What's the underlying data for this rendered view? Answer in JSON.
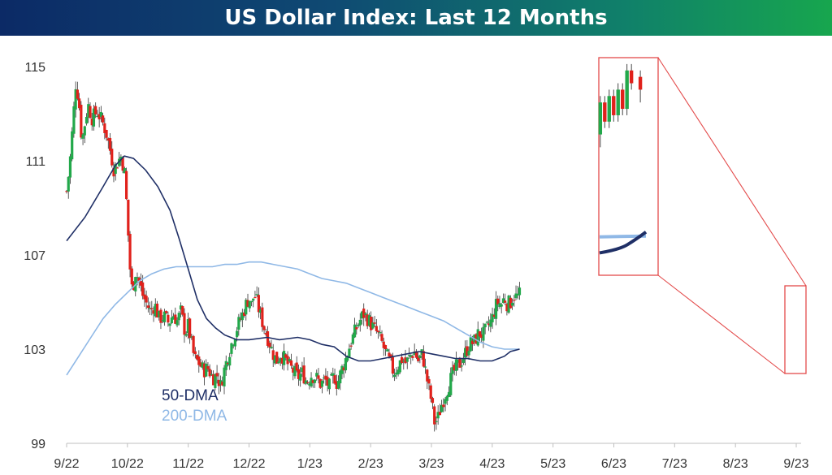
{
  "chart_data": {
    "type": "candlestick",
    "title": "US Dollar Index: Last 12 Months",
    "yticks": [
      99,
      103,
      107,
      111,
      115
    ],
    "ylim": [
      99,
      115.5
    ],
    "xticks": [
      "9/22",
      "10/22",
      "11/22",
      "12/22",
      "1/23",
      "2/23",
      "3/23",
      "4/23",
      "5/23",
      "6/23",
      "7/23",
      "8/23",
      "9/23"
    ],
    "close_path": [
      [
        0,
        109.7
      ],
      [
        0.05,
        110.8
      ],
      [
        0.1,
        112.5
      ],
      [
        0.15,
        114.3
      ],
      [
        0.2,
        113.6
      ],
      [
        0.25,
        111.8
      ],
      [
        0.3,
        112.6
      ],
      [
        0.35,
        113.4
      ],
      [
        0.42,
        112.8
      ],
      [
        0.5,
        113.1
      ],
      [
        0.58,
        112.7
      ],
      [
        0.65,
        112.2
      ],
      [
        0.72,
        111.4
      ],
      [
        0.78,
        110.6
      ],
      [
        0.85,
        111.0
      ],
      [
        0.9,
        111.2
      ],
      [
        0.96,
        110.4
      ],
      [
        1.0,
        108.5
      ],
      [
        1.04,
        106.5
      ],
      [
        1.08,
        105.4
      ],
      [
        1.13,
        106.3
      ],
      [
        1.18,
        106.0
      ],
      [
        1.25,
        105.3
      ],
      [
        1.32,
        104.9
      ],
      [
        1.38,
        104.6
      ],
      [
        1.45,
        104.9
      ],
      [
        1.52,
        104.3
      ],
      [
        1.6,
        104.4
      ],
      [
        1.68,
        104.1
      ],
      [
        1.75,
        104.5
      ],
      [
        1.82,
        104.2
      ],
      [
        1.88,
        104.6
      ],
      [
        1.95,
        103.7
      ],
      [
        2.0,
        104.0
      ],
      [
        2.05,
        103.3
      ],
      [
        2.1,
        102.6
      ],
      [
        2.18,
        102.4
      ],
      [
        2.25,
        102.1
      ],
      [
        2.32,
        102.2
      ],
      [
        2.4,
        101.8
      ],
      [
        2.48,
        101.9
      ],
      [
        2.53,
        101.4
      ],
      [
        2.58,
        102.0
      ],
      [
        2.65,
        102.7
      ],
      [
        2.72,
        103.3
      ],
      [
        2.8,
        103.9
      ],
      [
        2.88,
        104.4
      ],
      [
        2.95,
        104.9
      ],
      [
        3.0,
        105.2
      ],
      [
        3.05,
        104.8
      ],
      [
        3.08,
        105.4
      ],
      [
        3.12,
        105.1
      ],
      [
        3.18,
        104.5
      ],
      [
        3.25,
        103.9
      ],
      [
        3.32,
        103.4
      ],
      [
        3.38,
        102.9
      ],
      [
        3.45,
        102.5
      ],
      [
        3.52,
        102.8
      ],
      [
        3.58,
        102.6
      ],
      [
        3.65,
        102.3
      ],
      [
        3.72,
        102.1
      ],
      [
        3.8,
        101.8
      ],
      [
        3.88,
        102.0
      ],
      [
        3.95,
        101.6
      ],
      [
        4.02,
        101.9
      ],
      [
        4.1,
        101.8
      ],
      [
        4.18,
        101.5
      ],
      [
        4.25,
        101.7
      ],
      [
        4.32,
        101.4
      ],
      [
        4.4,
        101.9
      ],
      [
        4.45,
        101.5
      ],
      [
        4.52,
        102.1
      ],
      [
        4.58,
        102.5
      ],
      [
        4.65,
        103.1
      ],
      [
        4.72,
        103.6
      ],
      [
        4.8,
        104.1
      ],
      [
        4.88,
        104.5
      ],
      [
        4.95,
        104.3
      ],
      [
        5.02,
        104.0
      ],
      [
        5.1,
        103.7
      ],
      [
        5.18,
        103.3
      ],
      [
        5.25,
        102.8
      ],
      [
        5.32,
        102.4
      ],
      [
        5.38,
        102.0
      ],
      [
        5.45,
        102.3
      ],
      [
        5.52,
        102.6
      ],
      [
        5.58,
        102.4
      ],
      [
        5.65,
        102.7
      ],
      [
        5.72,
        102.9
      ],
      [
        5.78,
        102.5
      ],
      [
        5.85,
        102.8
      ],
      [
        5.9,
        102.1
      ],
      [
        5.95,
        101.4
      ],
      [
        6.0,
        100.8
      ],
      [
        6.05,
        99.9
      ],
      [
        6.1,
        100.0
      ],
      [
        6.15,
        100.5
      ],
      [
        6.2,
        100.9
      ],
      [
        6.27,
        101.4
      ],
      [
        6.33,
        101.8
      ],
      [
        6.4,
        102.2
      ],
      [
        6.47,
        102.4
      ],
      [
        6.55,
        102.8
      ],
      [
        6.62,
        103.2
      ],
      [
        6.7,
        103.3
      ],
      [
        6.78,
        103.7
      ],
      [
        6.85,
        103.6
      ],
      [
        6.92,
        103.9
      ],
      [
        7.0,
        104.3
      ],
      [
        7.05,
        104.8
      ],
      [
        7.1,
        105.0
      ],
      [
        7.15,
        104.9
      ],
      [
        7.2,
        105.2
      ],
      [
        7.25,
        104.9
      ],
      [
        7.3,
        105.0
      ],
      [
        7.35,
        105.3
      ],
      [
        7.4,
        105.2
      ],
      [
        7.45,
        105.3
      ]
    ],
    "ma50_path": [
      [
        0,
        107.6
      ],
      [
        0.3,
        108.6
      ],
      [
        0.6,
        109.9
      ],
      [
        0.8,
        110.8
      ],
      [
        0.95,
        111.2
      ],
      [
        1.1,
        111.1
      ],
      [
        1.3,
        110.6
      ],
      [
        1.5,
        109.9
      ],
      [
        1.7,
        108.9
      ],
      [
        1.85,
        107.7
      ],
      [
        2.0,
        106.4
      ],
      [
        2.15,
        105.1
      ],
      [
        2.3,
        104.3
      ],
      [
        2.45,
        103.9
      ],
      [
        2.6,
        103.6
      ],
      [
        2.8,
        103.4
      ],
      [
        3.0,
        103.4
      ],
      [
        3.3,
        103.5
      ],
      [
        3.5,
        103.4
      ],
      [
        3.8,
        103.5
      ],
      [
        4.0,
        103.4
      ],
      [
        4.2,
        103.2
      ],
      [
        4.4,
        103.1
      ],
      [
        4.6,
        102.7
      ],
      [
        4.8,
        102.5
      ],
      [
        5.0,
        102.5
      ],
      [
        5.2,
        102.6
      ],
      [
        5.4,
        102.7
      ],
      [
        5.6,
        102.8
      ],
      [
        5.8,
        102.9
      ],
      [
        6.0,
        102.8
      ],
      [
        6.2,
        102.7
      ],
      [
        6.4,
        102.6
      ],
      [
        6.6,
        102.6
      ],
      [
        6.8,
        102.5
      ],
      [
        6.9,
        102.5
      ],
      [
        7.0,
        102.5
      ],
      [
        7.1,
        102.6
      ],
      [
        7.2,
        102.7
      ],
      [
        7.3,
        102.9
      ],
      [
        7.45,
        103.0
      ]
    ],
    "ma200_path": [
      [
        0,
        101.9
      ],
      [
        0.2,
        102.7
      ],
      [
        0.4,
        103.5
      ],
      [
        0.6,
        104.3
      ],
      [
        0.8,
        104.9
      ],
      [
        1.0,
        105.4
      ],
      [
        1.2,
        105.9
      ],
      [
        1.4,
        106.2
      ],
      [
        1.6,
        106.4
      ],
      [
        1.8,
        106.5
      ],
      [
        2.0,
        106.5
      ],
      [
        2.2,
        106.5
      ],
      [
        2.4,
        106.5
      ],
      [
        2.6,
        106.6
      ],
      [
        2.8,
        106.6
      ],
      [
        3.0,
        106.7
      ],
      [
        3.2,
        106.7
      ],
      [
        3.4,
        106.6
      ],
      [
        3.6,
        106.5
      ],
      [
        3.8,
        106.4
      ],
      [
        4.0,
        106.2
      ],
      [
        4.2,
        106.0
      ],
      [
        4.4,
        105.9
      ],
      [
        4.6,
        105.8
      ],
      [
        4.8,
        105.6
      ],
      [
        5.0,
        105.4
      ],
      [
        5.2,
        105.2
      ],
      [
        5.4,
        105.0
      ],
      [
        5.6,
        104.8
      ],
      [
        5.8,
        104.6
      ],
      [
        6.0,
        104.4
      ],
      [
        6.2,
        104.2
      ],
      [
        6.4,
        103.9
      ],
      [
        6.6,
        103.6
      ],
      [
        6.8,
        103.3
      ],
      [
        7.0,
        103.1
      ],
      [
        7.2,
        103.0
      ],
      [
        7.45,
        103.0
      ]
    ],
    "legend": [
      {
        "label": "50-DMA",
        "color": "#1f2f66"
      },
      {
        "label": "200-DMA",
        "color": "#8fb8e6"
      }
    ],
    "colors": {
      "up": "#22a84a",
      "down": "#e0211b",
      "ma50": "#1f2f66",
      "ma200": "#8fb8e6",
      "zoom": "#e34a4a"
    }
  }
}
